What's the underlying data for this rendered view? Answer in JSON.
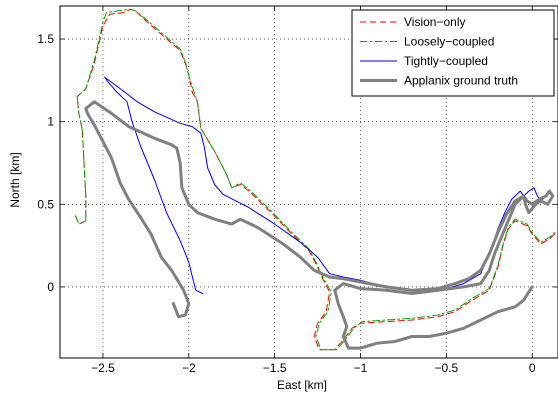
{
  "chart_data": {
    "type": "line",
    "xlabel": "East [km]",
    "ylabel": "North [km]",
    "xlim": [
      -2.75,
      0.15
    ],
    "ylim": [
      -0.43,
      1.7
    ],
    "grid": true,
    "legend_position": "top-right",
    "x_ticks": [
      -2.5,
      -2,
      -1.5,
      -1,
      -0.5,
      0
    ],
    "x_tick_labels": [
      "−2.5",
      "−2",
      "−1.5",
      "−1",
      "−0.5",
      "0"
    ],
    "y_ticks": [
      0,
      0.5,
      1,
      1.5
    ],
    "y_tick_labels": [
      "0",
      "0.5",
      "1",
      "1.5"
    ],
    "series": [
      {
        "name": "Vision−only",
        "color": "#ff0000",
        "style": "dashed",
        "points": [
          [
            -2.66,
            0.43
          ],
          [
            -2.64,
            0.38
          ],
          [
            -2.6,
            0.4
          ],
          [
            -2.6,
            0.55
          ],
          [
            -2.61,
            0.75
          ],
          [
            -2.62,
            0.95
          ],
          [
            -2.64,
            1.05
          ],
          [
            -2.65,
            1.15
          ],
          [
            -2.6,
            1.2
          ],
          [
            -2.55,
            1.35
          ],
          [
            -2.5,
            1.58
          ],
          [
            -2.46,
            1.65
          ],
          [
            -2.38,
            1.66
          ],
          [
            -2.34,
            1.68
          ],
          [
            -2.31,
            1.67
          ],
          [
            -2.25,
            1.61
          ],
          [
            -2.15,
            1.52
          ],
          [
            -2.05,
            1.43
          ],
          [
            -2.02,
            1.35
          ],
          [
            -2.0,
            1.28
          ],
          [
            -1.98,
            1.18
          ],
          [
            -1.95,
            1.12
          ],
          [
            -1.93,
            0.96
          ],
          [
            -1.85,
            0.82
          ],
          [
            -1.78,
            0.68
          ],
          [
            -1.75,
            0.6
          ],
          [
            -1.7,
            0.62
          ],
          [
            -1.65,
            0.58
          ],
          [
            -1.52,
            0.45
          ],
          [
            -1.4,
            0.32
          ],
          [
            -1.3,
            0.22
          ],
          [
            -1.25,
            0.12
          ],
          [
            -1.22,
            0.05
          ],
          [
            -1.18,
            -0.03
          ],
          [
            -1.2,
            -0.15
          ],
          [
            -1.25,
            -0.22
          ],
          [
            -1.27,
            -0.3
          ],
          [
            -1.24,
            -0.38
          ],
          [
            -1.15,
            -0.38
          ],
          [
            -1.1,
            -0.32
          ],
          [
            -1.05,
            -0.25
          ],
          [
            -1.0,
            -0.22
          ],
          [
            -0.85,
            -0.21
          ],
          [
            -0.7,
            -0.2
          ],
          [
            -0.55,
            -0.18
          ],
          [
            -0.45,
            -0.15
          ],
          [
            -0.35,
            -0.08
          ],
          [
            -0.25,
            -0.02
          ],
          [
            -0.2,
            0.12
          ],
          [
            -0.17,
            0.25
          ],
          [
            -0.14,
            0.35
          ],
          [
            -0.1,
            0.4
          ],
          [
            -0.03,
            0.37
          ],
          [
            0.0,
            0.32
          ],
          [
            0.05,
            0.26
          ],
          [
            0.1,
            0.29
          ],
          [
            0.14,
            0.33
          ]
        ]
      },
      {
        "name": "Loosely−coupled",
        "color": "#00aa00",
        "style": "dashdot",
        "points": [
          [
            -2.66,
            0.43
          ],
          [
            -2.64,
            0.38
          ],
          [
            -2.6,
            0.4
          ],
          [
            -2.6,
            0.55
          ],
          [
            -2.61,
            0.75
          ],
          [
            -2.62,
            0.95
          ],
          [
            -2.64,
            1.05
          ],
          [
            -2.65,
            1.15
          ],
          [
            -2.6,
            1.2
          ],
          [
            -2.55,
            1.37
          ],
          [
            -2.5,
            1.6
          ],
          [
            -2.48,
            1.66
          ],
          [
            -2.42,
            1.67
          ],
          [
            -2.34,
            1.68
          ],
          [
            -2.31,
            1.67
          ],
          [
            -2.25,
            1.62
          ],
          [
            -2.15,
            1.53
          ],
          [
            -2.05,
            1.44
          ],
          [
            -2.02,
            1.36
          ],
          [
            -2.0,
            1.28
          ],
          [
            -1.97,
            1.18
          ],
          [
            -1.95,
            1.12
          ],
          [
            -1.93,
            0.96
          ],
          [
            -1.85,
            0.82
          ],
          [
            -1.78,
            0.68
          ],
          [
            -1.75,
            0.6
          ],
          [
            -1.7,
            0.63
          ],
          [
            -1.65,
            0.59
          ],
          [
            -1.52,
            0.46
          ],
          [
            -1.4,
            0.33
          ],
          [
            -1.3,
            0.23
          ],
          [
            -1.25,
            0.13
          ],
          [
            -1.22,
            0.06
          ],
          [
            -1.17,
            -0.03
          ],
          [
            -1.19,
            -0.15
          ],
          [
            -1.24,
            -0.22
          ],
          [
            -1.26,
            -0.3
          ],
          [
            -1.23,
            -0.38
          ],
          [
            -1.14,
            -0.38
          ],
          [
            -1.09,
            -0.32
          ],
          [
            -1.04,
            -0.25
          ],
          [
            -0.99,
            -0.21
          ],
          [
            -0.85,
            -0.2
          ],
          [
            -0.7,
            -0.19
          ],
          [
            -0.55,
            -0.17
          ],
          [
            -0.45,
            -0.14
          ],
          [
            -0.35,
            -0.07
          ],
          [
            -0.25,
            -0.01
          ],
          [
            -0.2,
            0.13
          ],
          [
            -0.17,
            0.26
          ],
          [
            -0.14,
            0.36
          ],
          [
            -0.1,
            0.41
          ],
          [
            -0.03,
            0.38
          ],
          [
            0.0,
            0.33
          ],
          [
            0.05,
            0.27
          ],
          [
            0.1,
            0.3
          ],
          [
            0.14,
            0.34
          ]
        ]
      },
      {
        "name": "Tightly−coupled",
        "color": "#0000ff",
        "style": "solid",
        "points": [
          [
            -1.92,
            -0.04
          ],
          [
            -1.96,
            -0.02
          ],
          [
            -2.0,
            0.15
          ],
          [
            -2.05,
            0.28
          ],
          [
            -2.13,
            0.45
          ],
          [
            -2.2,
            0.65
          ],
          [
            -2.28,
            0.85
          ],
          [
            -2.33,
            1.0
          ],
          [
            -2.36,
            1.12
          ],
          [
            -2.42,
            1.18
          ],
          [
            -2.47,
            1.24
          ],
          [
            -2.49,
            1.27
          ],
          [
            -2.4,
            1.2
          ],
          [
            -2.3,
            1.12
          ],
          [
            -2.2,
            1.06
          ],
          [
            -2.05,
            0.99
          ],
          [
            -1.98,
            0.97
          ],
          [
            -1.93,
            0.93
          ],
          [
            -1.91,
            0.85
          ],
          [
            -1.89,
            0.72
          ],
          [
            -1.85,
            0.62
          ],
          [
            -1.8,
            0.56
          ],
          [
            -1.65,
            0.48
          ],
          [
            -1.5,
            0.38
          ],
          [
            -1.35,
            0.27
          ],
          [
            -1.25,
            0.18
          ],
          [
            -1.18,
            0.08
          ],
          [
            -1.1,
            0.06
          ],
          [
            -1.0,
            0.04
          ],
          [
            -0.85,
            0.0
          ],
          [
            -0.7,
            -0.02
          ],
          [
            -0.6,
            -0.02
          ],
          [
            -0.5,
            -0.01
          ],
          [
            -0.4,
            0.02
          ],
          [
            -0.3,
            0.08
          ],
          [
            -0.25,
            0.2
          ],
          [
            -0.2,
            0.35
          ],
          [
            -0.16,
            0.45
          ],
          [
            -0.12,
            0.53
          ],
          [
            -0.07,
            0.58
          ],
          [
            -0.05,
            0.55
          ],
          [
            -0.02,
            0.58
          ],
          [
            0.01,
            0.6
          ],
          [
            0.03,
            0.55
          ],
          [
            0.05,
            0.52
          ],
          [
            0.08,
            0.55
          ],
          [
            0.1,
            0.58
          ],
          [
            0.12,
            0.56
          ]
        ]
      },
      {
        "name": "Applanix ground truth",
        "color": "#808080",
        "style": "solid",
        "points": [
          [
            -2.09,
            -0.1
          ],
          [
            -2.06,
            -0.18
          ],
          [
            -2.02,
            -0.17
          ],
          [
            -2.0,
            -0.1
          ],
          [
            -2.03,
            -0.02
          ],
          [
            -2.1,
            0.1
          ],
          [
            -2.16,
            0.18
          ],
          [
            -2.22,
            0.32
          ],
          [
            -2.28,
            0.42
          ],
          [
            -2.35,
            0.53
          ],
          [
            -2.4,
            0.63
          ],
          [
            -2.45,
            0.78
          ],
          [
            -2.5,
            0.88
          ],
          [
            -2.55,
            0.98
          ],
          [
            -2.59,
            1.05
          ],
          [
            -2.6,
            1.08
          ],
          [
            -2.55,
            1.12
          ],
          [
            -2.52,
            1.1
          ],
          [
            -2.45,
            1.05
          ],
          [
            -2.35,
            0.97
          ],
          [
            -2.2,
            0.9
          ],
          [
            -2.1,
            0.86
          ],
          [
            -2.07,
            0.84
          ],
          [
            -2.05,
            0.75
          ],
          [
            -2.04,
            0.6
          ],
          [
            -2.0,
            0.5
          ],
          [
            -1.95,
            0.45
          ],
          [
            -1.85,
            0.41
          ],
          [
            -1.75,
            0.38
          ],
          [
            -1.7,
            0.41
          ],
          [
            -1.6,
            0.36
          ],
          [
            -1.45,
            0.26
          ],
          [
            -1.35,
            0.18
          ],
          [
            -1.27,
            0.1
          ],
          [
            -1.18,
            0.06
          ],
          [
            -1.1,
            0.05
          ],
          [
            -1.0,
            0.03
          ],
          [
            -0.85,
            0.0
          ],
          [
            -0.7,
            -0.02
          ],
          [
            -0.55,
            -0.01
          ],
          [
            -0.45,
            0.02
          ],
          [
            -0.37,
            0.05
          ],
          [
            -0.3,
            0.1
          ],
          [
            -0.25,
            0.2
          ],
          [
            -0.2,
            0.33
          ],
          [
            -0.15,
            0.44
          ],
          [
            -0.1,
            0.52
          ],
          [
            -0.05,
            0.55
          ],
          [
            -0.04,
            0.5
          ],
          [
            -0.02,
            0.45
          ],
          [
            0.02,
            0.5
          ],
          [
            0.05,
            0.52
          ],
          [
            0.09,
            0.5
          ],
          [
            0.12,
            0.55
          ],
          [
            0.1,
            0.58
          ],
          [
            0.08,
            0.55
          ],
          [
            0.04,
            0.53
          ],
          [
            0.0,
            0.5
          ],
          [
            -0.03,
            0.52
          ],
          [
            -0.05,
            0.55
          ],
          [
            -0.1,
            0.5
          ],
          [
            -0.14,
            0.4
          ],
          [
            -0.18,
            0.3
          ],
          [
            -0.22,
            0.2
          ],
          [
            -0.25,
            0.1
          ],
          [
            -0.3,
            0.02
          ],
          [
            -0.4,
            0.0
          ],
          [
            -0.55,
            -0.02
          ],
          [
            -0.7,
            -0.04
          ],
          [
            -0.85,
            -0.02
          ],
          [
            -1.0,
            -0.01
          ],
          [
            -1.1,
            0.02
          ],
          [
            -1.15,
            -0.02
          ],
          [
            -1.13,
            -0.1
          ],
          [
            -1.1,
            -0.18
          ],
          [
            -1.08,
            -0.24
          ],
          [
            -1.1,
            -0.3
          ],
          [
            -1.07,
            -0.37
          ],
          [
            -1.0,
            -0.37
          ],
          [
            -0.9,
            -0.34
          ],
          [
            -0.8,
            -0.33
          ],
          [
            -0.7,
            -0.3
          ],
          [
            -0.6,
            -0.3
          ],
          [
            -0.5,
            -0.28
          ],
          [
            -0.4,
            -0.25
          ],
          [
            -0.3,
            -0.2
          ],
          [
            -0.2,
            -0.15
          ],
          [
            -0.1,
            -0.12
          ],
          [
            -0.05,
            -0.08
          ],
          [
            -0.02,
            -0.03
          ],
          [
            0.0,
            0.0
          ]
        ]
      }
    ]
  }
}
